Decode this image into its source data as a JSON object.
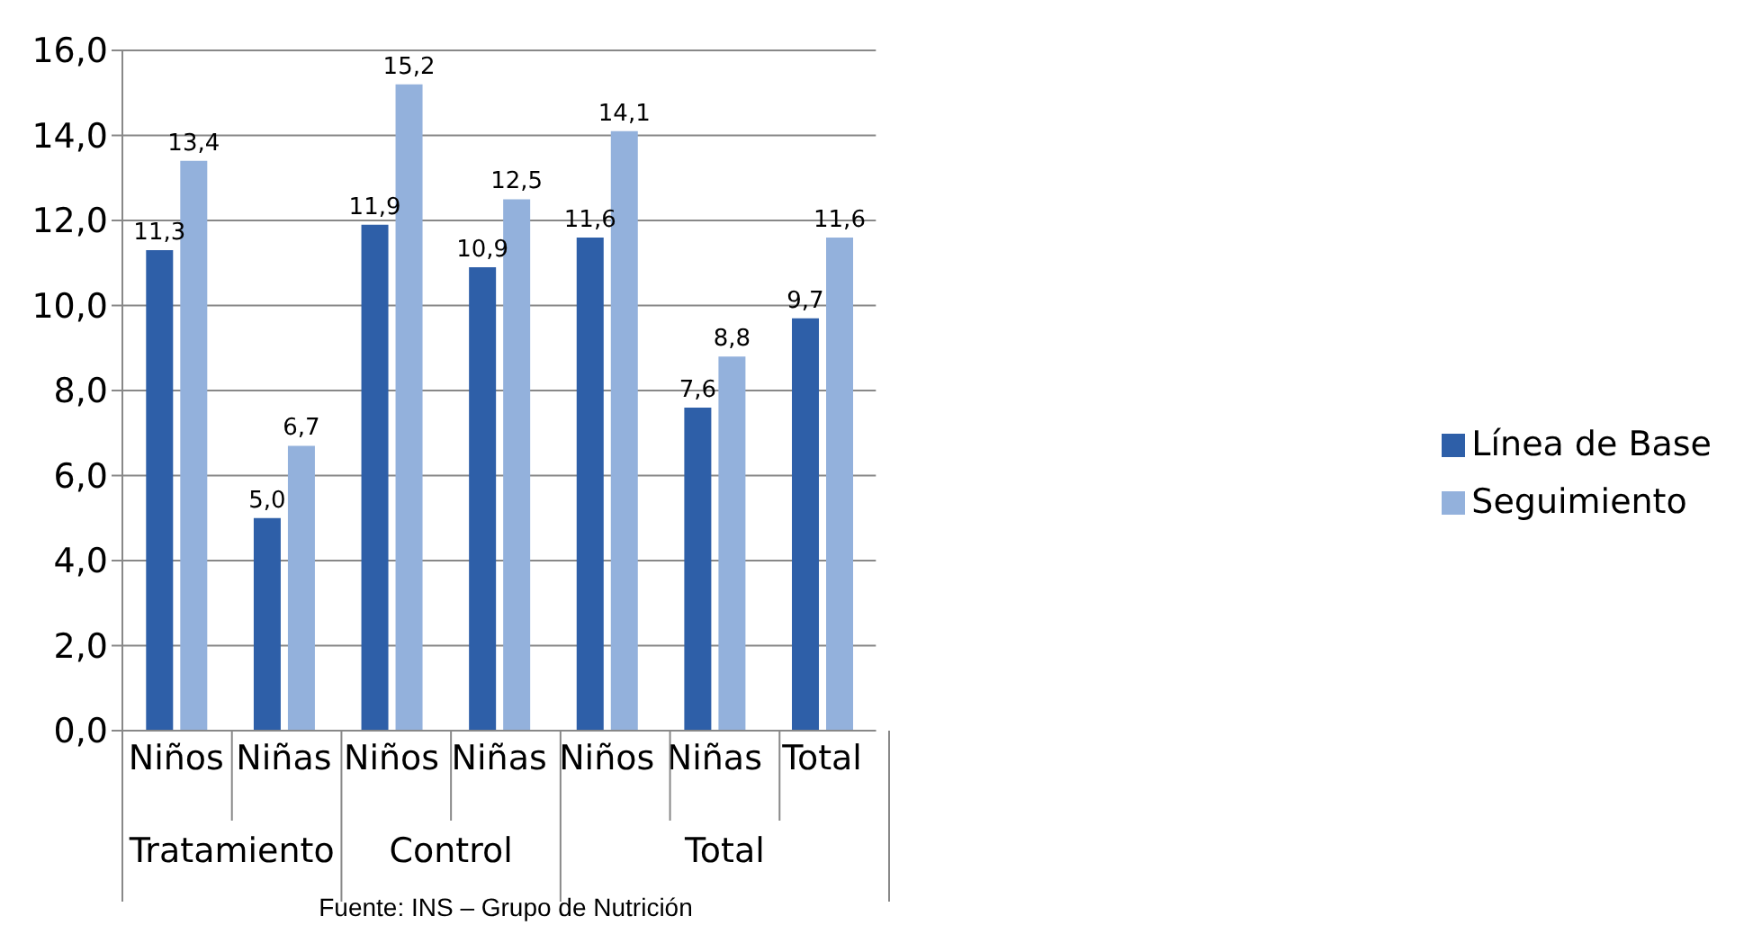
{
  "chart_data": {
    "type": "bar",
    "categories": [
      "Niños",
      "Niñas",
      "Niños",
      "Niñas",
      "Niños",
      "Niñas",
      "Total"
    ],
    "series": [
      {
        "name": "Línea de Base",
        "color": "#2e5fa8",
        "values": [
          11.3,
          5.0,
          11.9,
          10.9,
          11.6,
          7.6,
          9.7
        ],
        "value_labels": [
          "11,3",
          "5,0",
          "11,9",
          "10,9",
          "11,6",
          "7,6",
          "9,7"
        ]
      },
      {
        "name": "Seguimiento",
        "color": "#93b1dc",
        "values": [
          13.4,
          6.7,
          15.2,
          12.5,
          14.1,
          8.8,
          11.6
        ],
        "value_labels": [
          "13,4",
          "6,7",
          "15,2",
          "12,5",
          "14,1",
          "8,8",
          "11,6"
        ]
      }
    ],
    "ylim": [
      0,
      16
    ],
    "yticks": [
      {
        "value": 0,
        "label": "0,0"
      },
      {
        "value": 2,
        "label": "2,0"
      },
      {
        "value": 4,
        "label": "4,0"
      },
      {
        "value": 6,
        "label": "6,0"
      },
      {
        "value": 8,
        "label": "8,0"
      },
      {
        "value": 10,
        "label": "10,0"
      },
      {
        "value": 12,
        "label": "12,0"
      },
      {
        "value": 14,
        "label": "14,0"
      },
      {
        "value": 16,
        "label": "16,0"
      }
    ],
    "grid": "y",
    "legend": "right",
    "annotations": [
      "Tratamiento",
      "Control",
      "Total",
      "Fuente: INS – Grupo de Nutrición"
    ]
  }
}
